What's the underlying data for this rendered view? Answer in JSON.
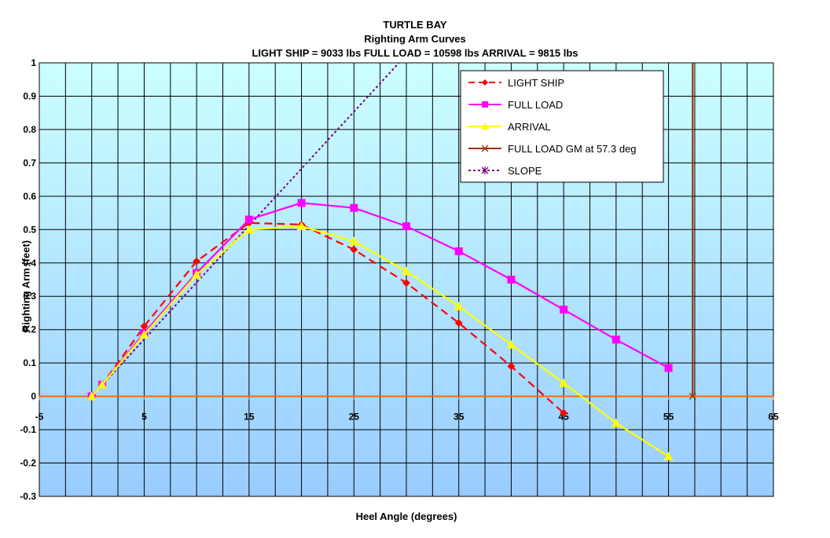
{
  "chart_data": {
    "type": "line",
    "title": "TURTLE BAY",
    "subtitle": "Righting Arm Curves",
    "subtitle2": "LIGHT SHIP = 9033 lbs  FULL LOAD = 10598 lbs  ARRIVAL = 9815 lbs",
    "xlabel": "Heel Angle (degrees)",
    "ylabel": "Righting Arm (feet)",
    "xlim": [
      -5,
      65
    ],
    "ylim": [
      -0.3,
      1
    ],
    "xticks": [
      "-5",
      "5",
      "15",
      "25",
      "35",
      "45",
      "55",
      "65"
    ],
    "yticks": [
      "-0.3",
      "-0.2",
      "-0.1",
      "0",
      "0.1",
      "0.2",
      "0.3",
      "0.4",
      "0.5",
      "0.6",
      "0.7",
      "0.8",
      "0.9",
      "1"
    ],
    "grid": true,
    "legend_position": "top-right",
    "series": [
      {
        "name": "LIGHT SHIP",
        "color": "#ff0000",
        "marker": "diamond",
        "dashed": true,
        "points": [
          [
            0,
            0
          ],
          [
            1,
            0.035
          ],
          [
            5,
            0.21
          ],
          [
            10,
            0.405
          ],
          [
            15,
            0.52
          ],
          [
            20,
            0.515
          ],
          [
            25,
            0.44
          ],
          [
            30,
            0.34
          ],
          [
            35,
            0.22
          ],
          [
            40,
            0.09
          ],
          [
            45,
            -0.05
          ]
        ]
      },
      {
        "name": "FULL LOAD",
        "color": "#ff00ff",
        "marker": "square",
        "dashed": false,
        "points": [
          [
            0,
            0
          ],
          [
            1,
            0.035
          ],
          [
            5,
            0.19
          ],
          [
            10,
            0.37
          ],
          [
            15,
            0.53
          ],
          [
            20,
            0.58
          ],
          [
            25,
            0.565
          ],
          [
            30,
            0.51
          ],
          [
            35,
            0.435
          ],
          [
            40,
            0.35
          ],
          [
            45,
            0.26
          ],
          [
            50,
            0.17
          ],
          [
            55,
            0.085
          ]
        ]
      },
      {
        "name": "ARRIVAL",
        "color": "#ffff00",
        "marker": "triangle",
        "dashed": false,
        "points": [
          [
            0,
            0
          ],
          [
            1,
            0.035
          ],
          [
            5,
            0.185
          ],
          [
            10,
            0.365
          ],
          [
            15,
            0.5
          ],
          [
            20,
            0.51
          ],
          [
            25,
            0.465
          ],
          [
            30,
            0.375
          ],
          [
            35,
            0.27
          ],
          [
            40,
            0.155
          ],
          [
            45,
            0.04
          ],
          [
            50,
            -0.08
          ],
          [
            55,
            -0.18
          ]
        ]
      },
      {
        "name": "FULL LOAD GM at 57.3 deg",
        "color": "#993300",
        "marker": "x",
        "dashed": false,
        "points": [
          [
            57.3,
            0
          ],
          [
            57.3,
            1
          ]
        ]
      },
      {
        "name": "SLOPE",
        "color": "#800080",
        "marker": "star",
        "dashed": true,
        "points": [
          [
            0,
            0
          ],
          [
            29.3,
            1
          ]
        ]
      }
    ]
  },
  "colors": {
    "plot_top": "#ccffff",
    "plot_bottom": "#99ccff",
    "zero_line": "#ff6600",
    "grid": "#000000"
  }
}
